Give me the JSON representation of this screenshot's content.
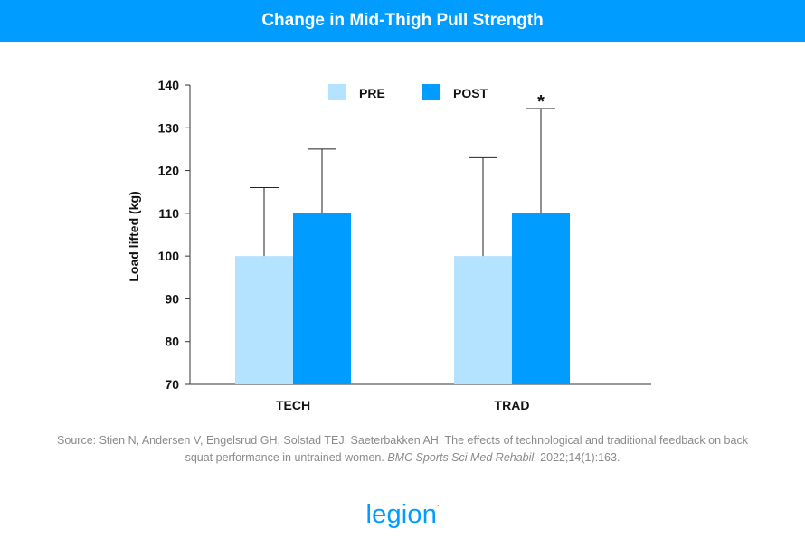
{
  "header": {
    "title": "Change in Mid-Thigh Pull Strength"
  },
  "chart_data": {
    "type": "bar",
    "categories": [
      "TECH",
      "TRAD"
    ],
    "series": [
      {
        "name": "PRE",
        "values": [
          100,
          100
        ],
        "error_upper": [
          116,
          123
        ],
        "color": "#b3e3ff"
      },
      {
        "name": "POST",
        "values": [
          110,
          110
        ],
        "error_upper": [
          125,
          134.5
        ],
        "color": "#009cff"
      }
    ],
    "ylabel": "Load lifted (kg)",
    "xlabel": "",
    "ylim": [
      70,
      140
    ],
    "yticks": [
      70,
      80,
      90,
      100,
      110,
      120,
      130,
      140
    ],
    "legend_position": "top",
    "annotations": [
      {
        "category": "TRAD",
        "series": "POST",
        "text": "*"
      }
    ]
  },
  "source": {
    "prefix": "Source: Stien N, Andersen V, Engelsrud GH, Solstad TEJ, Saeterbakken AH. The effects of technological and traditional feedback on back squat performance in untrained women.",
    "journal": "BMC Sports Sci Med Rehabil.",
    "suffix": "2022;14(1):163."
  },
  "logo": {
    "text": "legion",
    "mark": "."
  },
  "colors": {
    "brand": "#009cff",
    "pre": "#b3e3ff",
    "post": "#009cff"
  }
}
